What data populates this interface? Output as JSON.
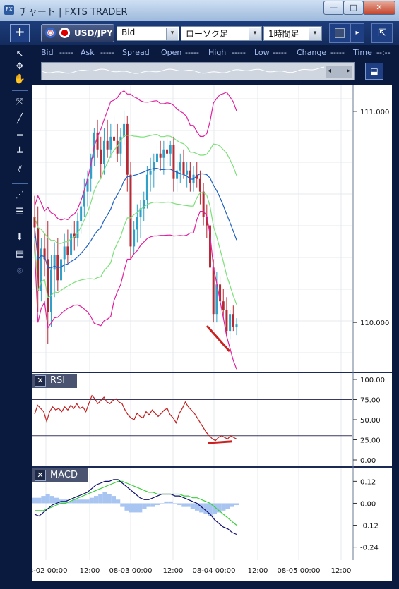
{
  "window": {
    "title": "チャート | FXTS TRADER",
    "app_icon": "FX",
    "min_icon": "—",
    "max_icon": "□",
    "close_icon": "✕"
  },
  "toolbar": {
    "add_button": "+",
    "symbol": "USD/JPY",
    "price_type": "Bid",
    "chart_type": "ローソク足",
    "timeframe": "1時間足",
    "dropdown_arrow": "▾",
    "play_icon": "▸",
    "expand_icon": "⇱"
  },
  "quote_bar": {
    "bid_label": "Bid",
    "bid_value": "-----",
    "ask_label": "Ask",
    "ask_value": "-----",
    "spread_label": "Spread",
    "open_label": "Open",
    "open_value": "-----",
    "high_label": "High",
    "high_value": "-----",
    "low_label": "Low",
    "low_value": "-----",
    "change_label": "Change",
    "change_value": "-----",
    "time_label": "Time",
    "time_value": "--:--"
  },
  "navigator": {
    "left_arrow": "◂",
    "right_arrow": "▸"
  },
  "panels": {
    "rsi": {
      "close": "✕",
      "label": "RSI"
    },
    "macd": {
      "close": "✕",
      "label": "MACD"
    }
  },
  "colors": {
    "bull": "#2fa0c8",
    "bear": "#b52a35",
    "bb_outer": "#e020a0",
    "bb_inner": "#7ce07a",
    "bb_mid": "#2060c0",
    "rsi": "#c02020",
    "macd": "#101070",
    "signal": "#3ad03a",
    "histogram": "#a8c4f0",
    "annotation": "#cc2020"
  },
  "chart_data": [
    {
      "type": "candlestick",
      "symbol": "USD/JPY",
      "x_labels": [
        "08-02 00:00",
        "12:00",
        "08-03 00:00",
        "12:00",
        "08-04 00:00",
        "12:00",
        "08-05 00:00",
        "12:00"
      ],
      "y_ticks": [
        "111.000",
        "110.000"
      ],
      "ylim": [
        109.8,
        111.1
      ],
      "candles_ohlc": [
        [
          110.5,
          110.6,
          110.35,
          110.45
        ],
        [
          110.45,
          110.55,
          110.05,
          110.15
        ],
        [
          110.15,
          110.4,
          110.1,
          110.35
        ],
        [
          110.35,
          110.42,
          110.22,
          110.3
        ],
        [
          110.3,
          110.48,
          109.9,
          110.05
        ],
        [
          110.05,
          110.32,
          109.98,
          110.25
        ],
        [
          110.25,
          110.38,
          110.12,
          110.32
        ],
        [
          110.32,
          110.4,
          110.15,
          110.2
        ],
        [
          110.2,
          110.32,
          110.12,
          110.3
        ],
        [
          110.3,
          110.42,
          110.24,
          110.36
        ],
        [
          110.36,
          110.44,
          110.28,
          110.32
        ],
        [
          110.32,
          110.46,
          110.28,
          110.42
        ],
        [
          110.42,
          110.48,
          110.34,
          110.4
        ],
        [
          110.4,
          110.52,
          110.36,
          110.48
        ],
        [
          110.48,
          110.58,
          110.42,
          110.55
        ],
        [
          110.55,
          110.68,
          110.5,
          110.62
        ],
        [
          110.62,
          110.72,
          110.55,
          110.68
        ],
        [
          110.68,
          110.8,
          110.62,
          110.78
        ],
        [
          110.78,
          110.92,
          110.74,
          110.9
        ],
        [
          110.9,
          110.96,
          110.78,
          110.82
        ],
        [
          110.82,
          110.88,
          110.68,
          110.75
        ],
        [
          110.75,
          110.92,
          110.7,
          110.86
        ],
        [
          110.86,
          110.96,
          110.78,
          110.82
        ],
        [
          110.82,
          110.94,
          110.78,
          110.88
        ],
        [
          110.88,
          110.98,
          110.82,
          110.86
        ],
        [
          110.86,
          110.94,
          110.76,
          110.8
        ],
        [
          110.8,
          110.92,
          110.74,
          110.88
        ],
        [
          110.88,
          111.0,
          110.84,
          110.94
        ],
        [
          110.94,
          110.98,
          110.62,
          110.7
        ],
        [
          110.7,
          110.76,
          110.3,
          110.36
        ],
        [
          110.36,
          110.48,
          110.32,
          110.44
        ],
        [
          110.44,
          110.56,
          110.38,
          110.5
        ],
        [
          110.5,
          110.58,
          110.4,
          110.54
        ],
        [
          110.54,
          110.62,
          110.48,
          110.58
        ],
        [
          110.58,
          110.74,
          110.54,
          110.7
        ],
        [
          110.7,
          110.78,
          110.62,
          110.72
        ],
        [
          110.72,
          110.8,
          110.64,
          110.76
        ],
        [
          110.76,
          110.84,
          110.68,
          110.8
        ],
        [
          110.8,
          110.86,
          110.72,
          110.78
        ],
        [
          110.78,
          110.86,
          110.7,
          110.82
        ],
        [
          110.82,
          110.88,
          110.74,
          110.8
        ],
        [
          110.8,
          110.86,
          110.74,
          110.84
        ],
        [
          110.84,
          110.88,
          110.62,
          110.68
        ],
        [
          110.68,
          110.76,
          110.62,
          110.72
        ],
        [
          110.72,
          110.8,
          110.66,
          110.76
        ],
        [
          110.76,
          110.82,
          110.68,
          110.7
        ],
        [
          110.7,
          110.76,
          110.64,
          110.72
        ],
        [
          110.72,
          110.76,
          110.62,
          110.66
        ],
        [
          110.66,
          110.74,
          110.62,
          110.7
        ],
        [
          110.7,
          110.76,
          110.64,
          110.68
        ],
        [
          110.68,
          110.72,
          110.56,
          110.62
        ],
        [
          110.62,
          110.66,
          110.46,
          110.5
        ],
        [
          110.5,
          110.56,
          110.4,
          110.46
        ],
        [
          110.46,
          110.52,
          110.2,
          110.26
        ],
        [
          110.26,
          110.3,
          110.0,
          110.04
        ],
        [
          110.04,
          110.24,
          110.0,
          110.18
        ],
        [
          110.18,
          110.22,
          110.04,
          110.1
        ],
        [
          110.1,
          110.16,
          110.02,
          110.06
        ],
        [
          110.06,
          110.12,
          109.94,
          109.96
        ],
        [
          109.96,
          110.06,
          109.92,
          110.04
        ],
        [
          110.04,
          110.08,
          109.96,
          109.98
        ],
        [
          109.98,
          110.02,
          109.94,
          109.99
        ]
      ],
      "bollinger": {
        "upper": "magenta",
        "inner": "lightgreen",
        "middle": "blue"
      }
    },
    {
      "type": "line",
      "name": "RSI",
      "y_ticks": [
        "100.00",
        "75.00",
        "50.00",
        "25.00",
        "0.00"
      ],
      "ylim": [
        0,
        100
      ],
      "levels": [
        75,
        30
      ],
      "values": [
        57,
        68,
        64,
        60,
        48,
        60,
        66,
        62,
        64,
        60,
        66,
        62,
        68,
        64,
        70,
        64,
        66,
        60,
        70,
        80,
        76,
        70,
        74,
        78,
        72,
        70,
        74,
        76,
        72,
        70,
        62,
        56,
        52,
        50,
        58,
        54,
        52,
        60,
        56,
        62,
        58,
        54,
        58,
        62,
        64,
        56,
        52,
        46,
        58,
        64,
        72,
        66,
        62,
        58,
        52,
        46,
        40,
        34,
        30,
        26,
        24,
        28,
        30,
        28,
        26,
        30,
        28,
        26
      ]
    },
    {
      "type": "line",
      "name": "MACD",
      "y_ticks": [
        "0.12",
        "0.00",
        "-0.12",
        "-0.24"
      ],
      "ylim": [
        -0.28,
        0.16
      ],
      "series": [
        {
          "values": [
            -0.06,
            -0.07,
            -0.05,
            -0.03,
            -0.01,
            0.0,
            0.01,
            0.01,
            0.02,
            0.03,
            0.04,
            0.05,
            0.06,
            0.08,
            0.1,
            0.11,
            0.12,
            0.12,
            0.13,
            0.13,
            0.11,
            0.09,
            0.07,
            0.05,
            0.03,
            0.02,
            0.02,
            0.03,
            0.04,
            0.05,
            0.05,
            0.05,
            0.04,
            0.04,
            0.03,
            0.02,
            0.01,
            0.0,
            -0.02,
            -0.04,
            -0.06,
            -0.09,
            -0.11,
            -0.13,
            -0.14,
            -0.16,
            -0.17
          ]
        },
        {
          "values": [
            -0.04,
            -0.04,
            -0.04,
            -0.03,
            -0.02,
            -0.01,
            0.0,
            0.0,
            0.01,
            0.02,
            0.03,
            0.04,
            0.05,
            0.06,
            0.07,
            0.08,
            0.09,
            0.1,
            0.11,
            0.12,
            0.12,
            0.11,
            0.1,
            0.09,
            0.08,
            0.07,
            0.06,
            0.06,
            0.05,
            0.05,
            0.05,
            0.05,
            0.05,
            0.05,
            0.04,
            0.04,
            0.03,
            0.03,
            0.02,
            0.01,
            0.0,
            -0.02,
            -0.04,
            -0.06,
            -0.08,
            -0.1,
            -0.12
          ]
        },
        {
          "type": "histogram",
          "values": [
            0.03,
            0.03,
            0.04,
            0.05,
            0.04,
            0.03,
            0.02,
            0.02,
            0.01,
            0.02,
            0.02,
            0.02,
            0.02,
            0.03,
            0.04,
            0.05,
            0.06,
            0.05,
            0.04,
            0.02,
            -0.02,
            -0.04,
            -0.05,
            -0.05,
            -0.05,
            -0.03,
            -0.02,
            -0.02,
            -0.01,
            0.0,
            0.01,
            0.01,
            0.0,
            -0.01,
            -0.02,
            -0.02,
            -0.03,
            -0.04,
            -0.05,
            -0.06,
            -0.07,
            -0.06,
            -0.05,
            -0.04,
            -0.03,
            -0.02,
            -0.01
          ]
        }
      ]
    }
  ]
}
